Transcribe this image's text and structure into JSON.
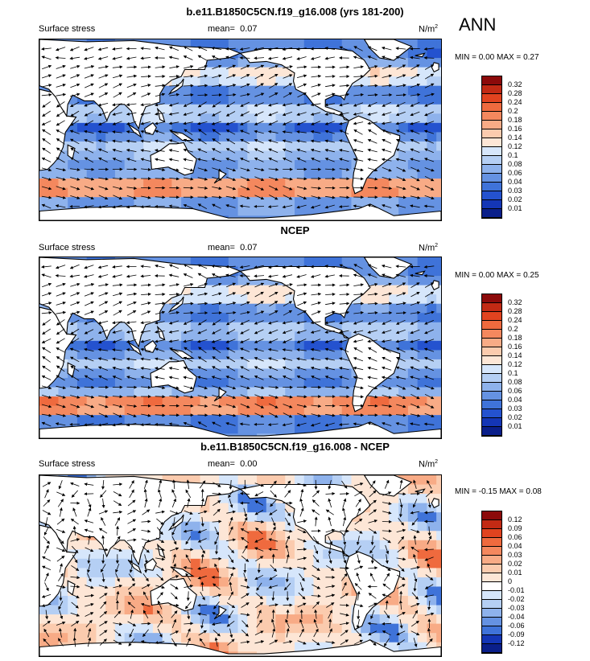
{
  "season": "ANN",
  "panels": [
    {
      "title": "b.e11.B1850C5CN.f19_g16.008 (yrs 181-200)",
      "left_label": "Surface stress",
      "mean_label": "mean=",
      "mean_value": "0.07",
      "units": "N/m",
      "units_sup": "2",
      "min_label": "MIN =",
      "min_value": "0.00",
      "max_label": "MAX =",
      "max_value": "0.27",
      "colorbar_ticks": [
        "0.32",
        "0.28",
        "0.24",
        "0.2",
        "0.18",
        "0.16",
        "0.14",
        "0.12",
        "0.1",
        "0.08",
        "0.06",
        "0.04",
        "0.03",
        "0.02",
        "0.01"
      ],
      "colorbar_colors": [
        "#8c0a0a",
        "#c22a14",
        "#e1431f",
        "#ef6a3e",
        "#f4885e",
        "#f8ab86",
        "#fbcbae",
        "#fde6d6",
        "#d6e6fb",
        "#b5cff4",
        "#8eb2ec",
        "#6592e2",
        "#3f73d9",
        "#2452cf",
        "#1436b6",
        "#0a1f8a"
      ],
      "field": "model"
    },
    {
      "title": "NCEP",
      "left_label": "Surface stress",
      "mean_label": "mean=",
      "mean_value": "0.07",
      "units": "N/m",
      "units_sup": "2",
      "min_label": "MIN =",
      "min_value": "0.00",
      "max_label": "MAX =",
      "max_value": "0.25",
      "colorbar_ticks": [
        "0.32",
        "0.28",
        "0.24",
        "0.2",
        "0.18",
        "0.16",
        "0.14",
        "0.12",
        "0.1",
        "0.08",
        "0.06",
        "0.04",
        "0.03",
        "0.02",
        "0.01"
      ],
      "colorbar_colors": [
        "#8c0a0a",
        "#c22a14",
        "#e1431f",
        "#ef6a3e",
        "#f4885e",
        "#f8ab86",
        "#fbcbae",
        "#fde6d6",
        "#d6e6fb",
        "#b5cff4",
        "#8eb2ec",
        "#6592e2",
        "#3f73d9",
        "#2452cf",
        "#1436b6",
        "#0a1f8a"
      ],
      "field": "obs"
    },
    {
      "title": "b.e11.B1850C5CN.f19_g16.008 - NCEP",
      "left_label": "Surface stress",
      "mean_label": "mean=",
      "mean_value": "0.00",
      "units": "N/m",
      "units_sup": "2",
      "min_label": "MIN =",
      "min_value": "-0.15",
      "max_label": "MAX =",
      "max_value": "0.08",
      "colorbar_ticks": [
        "0.12",
        "0.09",
        "0.06",
        "0.04",
        "0.03",
        "0.02",
        "0.01",
        "0",
        "-0.01",
        "-0.02",
        "-0.03",
        "-0.04",
        "-0.06",
        "-0.09",
        "-0.12"
      ],
      "colorbar_colors": [
        "#8c0a0a",
        "#c22a14",
        "#e1431f",
        "#ef6a3e",
        "#f4885e",
        "#f8ab86",
        "#fbcbae",
        "#fde6d6",
        "#ffffff",
        "#d6e6fb",
        "#b5cff4",
        "#8eb2ec",
        "#6592e2",
        "#3f73d9",
        "#1436b6",
        "#0a1f8a"
      ],
      "field": "diff"
    }
  ]
}
